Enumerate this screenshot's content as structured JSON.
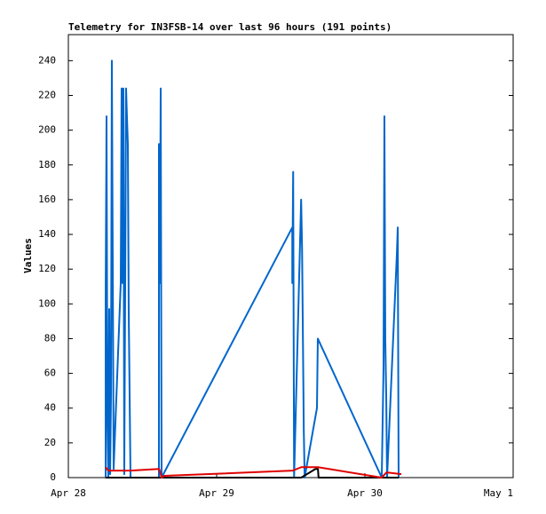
{
  "chart_data": {
    "type": "line",
    "title": "Telemetry for IN3FSB-14 over last 96 hours (191 points)",
    "y_label": "Values",
    "xlim": [
      0,
      72
    ],
    "xticks": [
      {
        "value": 0,
        "label": "Apr 28"
      },
      {
        "value": 24,
        "label": "Apr 29"
      },
      {
        "value": 48,
        "label": "Apr 30"
      },
      {
        "value": 72,
        "label": "May 1"
      }
    ],
    "ylim": [
      0,
      255
    ],
    "yticks": [
      0,
      20,
      40,
      60,
      80,
      100,
      120,
      140,
      160,
      180,
      200,
      220,
      240
    ],
    "series": [
      {
        "color": "#e00000",
        "x": [
          6.0,
          6.5,
          8.0,
          10.0,
          14.7,
          15.1,
          15.5,
          36.3,
          37.7,
          40.4,
          50.7,
          51.5,
          53.9
        ],
        "values": [
          6,
          4,
          4,
          4,
          5,
          0,
          1,
          4,
          6,
          6,
          0,
          3,
          2
        ]
      },
      {
        "color": "#000000",
        "x": [
          6.0,
          37.7,
          40.0,
          40.4,
          40.5,
          53.5
        ],
        "values": [
          0,
          0,
          5,
          5,
          0,
          0
        ]
      },
      {
        "color": "#0066cc",
        "x": [
          6.04,
          6.04,
          6.18,
          6.32,
          6.47,
          6.61,
          6.76,
          6.9,
          7.04,
          7.19,
          7.33,
          8.48,
          8.62,
          8.77,
          8.91,
          9.05,
          9.2,
          9.34,
          9.48,
          9.63,
          9.77,
          10.06,
          14.66,
          14.66,
          14.8,
          14.95,
          15.09,
          36.25,
          36.25,
          36.39,
          36.54,
          37.68,
          37.83,
          37.97,
          38.11,
          38.25,
          40.24,
          40.38,
          50.73,
          51.02,
          51.16,
          51.3,
          51.45,
          51.59,
          53.17,
          53.32,
          53.46
        ],
        "values": [
          0,
          104,
          208,
          32,
          0,
          97,
          2,
          48,
          240,
          120,
          5,
          112,
          224,
          112,
          224,
          2,
          112,
          224,
          208,
          192,
          96,
          0,
          0,
          192,
          112,
          224,
          0,
          144,
          112,
          176,
          0,
          160,
          132,
          80,
          27,
          0,
          40,
          80,
          0,
          64,
          208,
          80,
          48,
          0,
          128,
          144,
          0
        ]
      }
    ]
  }
}
